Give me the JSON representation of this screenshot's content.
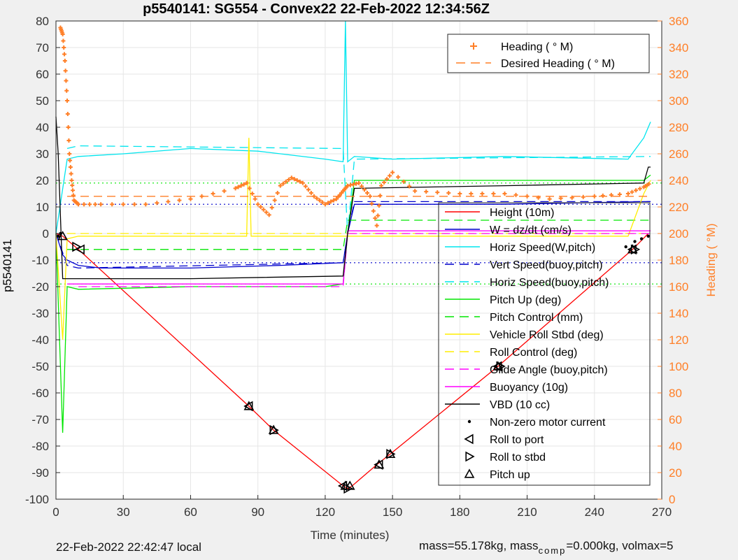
{
  "chart_data": {
    "type": "line",
    "title": "p5540141: SG554 - Convex22 22-Feb-2022 12:34:56Z",
    "xlabel": "Time (minutes)",
    "ylabel_left": "p5540141",
    "ylabel_right": "Heading (  °M)",
    "xlim": [
      0,
      270
    ],
    "ylim_left": [
      -100,
      80
    ],
    "ylim_right": [
      0,
      360
    ],
    "x_ticks": [
      "0",
      "30",
      "60",
      "90",
      "120",
      "150",
      "180",
      "210",
      "240",
      "270"
    ],
    "y_ticks_left": [
      "-100",
      "-90",
      "-80",
      "-70",
      "-60",
      "-50",
      "-40",
      "-30",
      "-20",
      "-10",
      "0",
      "10",
      "20",
      "30",
      "40",
      "50",
      "60",
      "70",
      "80"
    ],
    "y_ticks_right": [
      "0",
      "20",
      "40",
      "60",
      "80",
      "100",
      "120",
      "140",
      "160",
      "180",
      "200",
      "220",
      "240",
      "260",
      "280",
      "300",
      "320",
      "340",
      "360"
    ],
    "grid": true,
    "legend_top": {
      "placement": "top-right",
      "entries": [
        {
          "label": "Heading (  ° M)",
          "color": "#ff7f27",
          "style": "plus"
        },
        {
          "label": "Desired Heading (    ° M)",
          "color": "#ff7f27",
          "style": "dash"
        }
      ]
    },
    "legend_main": {
      "placement": "right",
      "entries": [
        {
          "label": "Height (10m)",
          "color": "#ff0000",
          "style": "solid"
        },
        {
          "label": "W = dz/dt (cm/s)",
          "color": "#0000cc",
          "style": "solid"
        },
        {
          "label": "Horiz Speed(W,pitch)",
          "color": "#00e5ee",
          "style": "solid"
        },
        {
          "label": "Vert Speed(buoy,pitch)",
          "color": "#0000cc",
          "style": "dash"
        },
        {
          "label": "Horiz Speed(buoy,pitch)",
          "color": "#00e5ee",
          "style": "dash"
        },
        {
          "label": "Pitch Up (deg)",
          "color": "#00e600",
          "style": "solid"
        },
        {
          "label": "Pitch Control (mm)",
          "color": "#00e600",
          "style": "dash"
        },
        {
          "label": "Vehicle Roll Stbd (deg)",
          "color": "#ffee00",
          "style": "solid"
        },
        {
          "label": "Roll Control (deg)",
          "color": "#ffee00",
          "style": "dash"
        },
        {
          "label": "Glide Angle (buoy,pitch)",
          "color": "#ff00ff",
          "style": "dash"
        },
        {
          "label": "Buoyancy (10g)",
          "color": "#ff00ff",
          "style": "solid"
        },
        {
          "label": "VBD (10 cc)",
          "color": "#000000",
          "style": "solid"
        },
        {
          "label": "Non-zero motor current",
          "color": "#000000",
          "style": "dot"
        },
        {
          "label": "Roll to port",
          "color": "#000000",
          "style": "tri-left"
        },
        {
          "label": "Roll to stbd",
          "color": "#000000",
          "style": "tri-right"
        },
        {
          "label": "Pitch up",
          "color": "#000000",
          "style": "tri-up"
        }
      ]
    },
    "series": [
      {
        "name": "Height (10m)",
        "axis": "left",
        "color": "#ff0000",
        "x": [
          0,
          3,
          10,
          86,
          97,
          128,
          130,
          132,
          143,
          149,
          197,
          257,
          264
        ],
        "y": [
          0,
          -1,
          -6,
          -65,
          -74,
          -95,
          -96,
          -95,
          -87,
          -83,
          -50,
          -6,
          0
        ]
      },
      {
        "name": "W = dz/dt (cm/s)",
        "axis": "left",
        "color": "#0000cc",
        "x": [
          0,
          3,
          5,
          10,
          20,
          60,
          100,
          128,
          130,
          133,
          150,
          200,
          262,
          265
        ],
        "y": [
          0,
          -8,
          -10,
          -12,
          -13,
          -13,
          -12,
          -11,
          0,
          11,
          11,
          11,
          12,
          12
        ]
      },
      {
        "name": "Horiz Speed(W,pitch)",
        "axis": "left",
        "color": "#00e5ee",
        "x": [
          0,
          5,
          10,
          30,
          60,
          90,
          120,
          128,
          129,
          130,
          133,
          150,
          200,
          255,
          262,
          265
        ],
        "y": [
          0,
          28,
          29,
          30,
          32,
          31,
          28,
          27,
          80,
          27,
          29,
          28,
          29,
          28,
          36,
          42
        ]
      },
      {
        "name": "Vert Speed(buoy,pitch)",
        "axis": "left",
        "color": "#0000cc",
        "dash": true,
        "x": [
          0,
          5,
          10,
          128,
          130,
          133,
          265
        ],
        "y": [
          0,
          -12,
          -13,
          -11,
          0,
          12,
          12
        ]
      },
      {
        "name": "Horiz Speed(buoy,pitch)",
        "axis": "left",
        "color": "#00e5ee",
        "dash": true,
        "x": [
          5,
          10,
          128,
          130,
          133,
          265
        ],
        "y": [
          32,
          33,
          32,
          0,
          28,
          29
        ]
      },
      {
        "name": "Pitch Up (deg)",
        "axis": "left",
        "color": "#00e600",
        "x": [
          0,
          3,
          5,
          10,
          60,
          120,
          128,
          130,
          133,
          150,
          200,
          262,
          265
        ],
        "y": [
          0,
          -75,
          -20,
          -21,
          -20,
          -20,
          -19,
          0,
          20,
          20,
          20,
          20,
          22
        ]
      },
      {
        "name": "Pitch Control (mm)",
        "axis": "left",
        "color": "#00e600",
        "dash": true,
        "x": [
          5,
          128,
          130,
          265
        ],
        "y": [
          -6,
          -6,
          5,
          5
        ]
      },
      {
        "name": "Vehicle Roll Stbd (deg)",
        "axis": "left",
        "color": "#ffee00",
        "x": [
          0,
          3,
          5,
          10,
          85,
          86,
          87,
          150,
          200,
          255,
          262,
          265
        ],
        "y": [
          0,
          -40,
          -2,
          -1,
          -1,
          36,
          -1,
          -1,
          -1,
          -1,
          15,
          20
        ]
      },
      {
        "name": "Roll Control (deg)",
        "axis": "left",
        "color": "#ffee00",
        "dash": true,
        "x": [
          5,
          265
        ],
        "y": [
          0,
          0
        ]
      },
      {
        "name": "Glide Angle (buoy,pitch)",
        "axis": "left",
        "color": "#ff00ff",
        "dash": true,
        "x": [
          10,
          128,
          130,
          265
        ],
        "y": [
          -20,
          -20,
          0,
          0
        ]
      },
      {
        "name": "Buoyancy (10g)",
        "axis": "left",
        "color": "#ff00ff",
        "x": [
          5,
          128,
          130,
          265
        ],
        "y": [
          -19,
          -19,
          1,
          1
        ]
      },
      {
        "name": "VBD (10 cc)",
        "axis": "left",
        "color": "#000000",
        "x": [
          0,
          1,
          3,
          10,
          60,
          128,
          130,
          133,
          200,
          262,
          264,
          265
        ],
        "y": [
          44,
          30,
          -17,
          -17,
          -17,
          -16,
          0,
          17,
          18,
          19,
          25,
          25
        ]
      },
      {
        "name": "Heading (  ° M)",
        "axis": "right",
        "color": "#ff7f27",
        "x": [
          2,
          3,
          4,
          5,
          6,
          7,
          8,
          10,
          20,
          40,
          60,
          80,
          85,
          90,
          95,
          100,
          105,
          110,
          115,
          120,
          125,
          128,
          130,
          135,
          140,
          143,
          145,
          150,
          160,
          180,
          200,
          220,
          240,
          255,
          262,
          265
        ],
        "y": [
          355,
          350,
          330,
          300,
          260,
          240,
          225,
          222,
          222,
          222,
          226,
          234,
          238,
          222,
          214,
          236,
          242,
          238,
          228,
          222,
          226,
          232,
          236,
          238,
          228,
          206,
          236,
          246,
          232,
          230,
          230,
          226,
          228,
          230,
          235,
          238
        ]
      },
      {
        "name": "Desired Heading (    ° M)",
        "axis": "right",
        "color": "#ff7f27",
        "dash": true,
        "x": [
          5,
          265
        ],
        "y": [
          228,
          228
        ]
      },
      {
        "name": "Non-zero motor current",
        "axis": "left",
        "style": "dot",
        "color": "#000000",
        "x": [
          1,
          2,
          254,
          258,
          261,
          264
        ],
        "y": [
          -1,
          0,
          -5,
          -3,
          -2,
          -1
        ]
      },
      {
        "name": "Roll to port",
        "axis": "left",
        "style": "tri-left",
        "color": "#000000",
        "x": [
          11,
          86,
          128,
          144,
          197,
          257
        ],
        "y": [
          -6,
          -65,
          -95,
          -87,
          -50,
          -6
        ]
      },
      {
        "name": "Roll to stbd",
        "axis": "left",
        "style": "tri-right",
        "color": "#000000",
        "x": [
          9,
          97,
          130,
          149,
          198,
          258
        ],
        "y": [
          -5,
          -74,
          -96,
          -83,
          -50,
          -6
        ]
      },
      {
        "name": "Pitch up",
        "axis": "left",
        "style": "tri-up",
        "color": "#000000",
        "x": [
          3,
          86,
          97,
          129,
          131,
          144,
          149,
          197,
          257
        ],
        "y": [
          -1,
          -65,
          -74,
          -95,
          -95,
          -87,
          -83,
          -50,
          -6
        ]
      }
    ],
    "ref_lines": [
      {
        "axis": "left",
        "y": 11,
        "color": "#0000cc"
      },
      {
        "axis": "left",
        "y": -11,
        "color": "#0000cc"
      },
      {
        "axis": "left",
        "y": 19,
        "color": "#00e600"
      },
      {
        "axis": "left",
        "y": -19,
        "color": "#00e600"
      }
    ]
  },
  "footer": {
    "local_time": "22-Feb-2022 22:42:47 local",
    "mass_text": "mass=55.178kg, mass",
    "comp_text": "comp",
    "volmax_text": "=0.000kg, volmax=5"
  }
}
